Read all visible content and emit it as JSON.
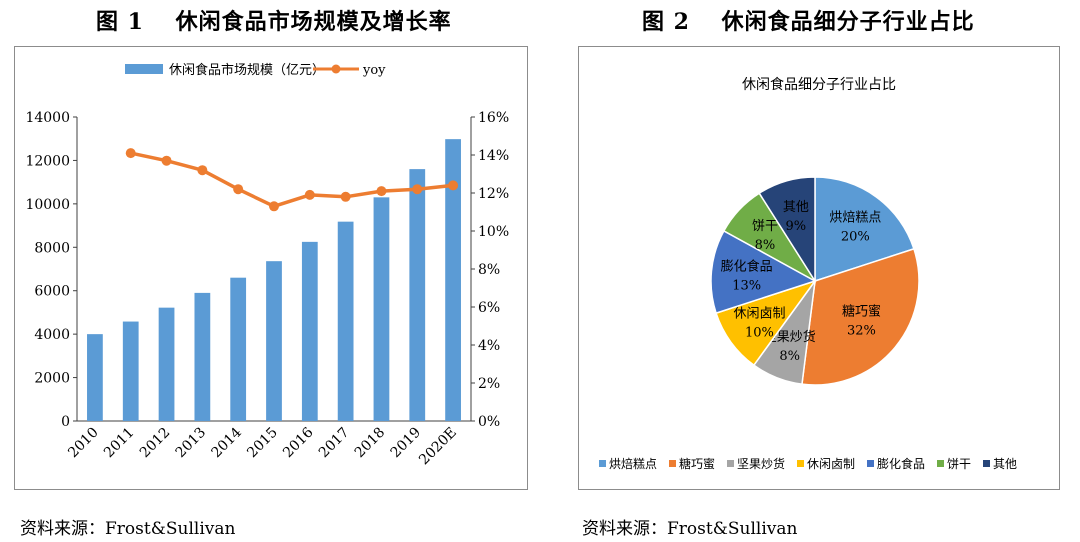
{
  "figure1": {
    "title": "图 1　 休闲食品市场规模及增长率",
    "source": "资料来源：Frost&Sullivan",
    "chart_data": {
      "type": "bar",
      "categories": [
        "2010",
        "2011",
        "2012",
        "2013",
        "2014",
        "2015",
        "2016",
        "2017",
        "2018",
        "2019",
        "2020E"
      ],
      "series": [
        {
          "name": "休闲食品市场规模（亿元）",
          "type": "bar",
          "axis": "left",
          "color": "#5b9bd5",
          "values": [
            4000,
            4580,
            5220,
            5900,
            6600,
            7360,
            8250,
            9180,
            10300,
            11600,
            12980
          ]
        },
        {
          "name": "yoy",
          "type": "line",
          "axis": "right",
          "color": "#ed7d31",
          "values": [
            null,
            14.1,
            13.7,
            13.2,
            12.2,
            11.3,
            11.9,
            11.8,
            12.1,
            12.2,
            12.4
          ]
        }
      ],
      "ylim_left": [
        0,
        14000
      ],
      "yticks_left": [
        "0",
        "2000",
        "4000",
        "6000",
        "8000",
        "10000",
        "12000",
        "14000"
      ],
      "ylim_right": [
        0,
        16
      ],
      "yticks_right": [
        "0%",
        "2%",
        "4%",
        "6%",
        "8%",
        "10%",
        "12%",
        "14%",
        "16%"
      ],
      "legend": "top",
      "grid": false
    }
  },
  "figure2": {
    "title": "图 2　 休闲食品细分子行业占比",
    "source": "资料来源：Frost&Sullivan",
    "chart_data": {
      "type": "pie",
      "title": "休闲食品细分子行业占比",
      "labels": [
        "烘焙糕点",
        "糖巧蜜",
        "坚果炒货",
        "休闲卤制",
        "膨化食品",
        "饼干",
        "其他"
      ],
      "values": [
        20,
        32,
        8,
        10,
        13,
        8,
        9
      ],
      "value_labels": [
        "20%",
        "32%",
        "8%",
        "10%",
        "13%",
        "8%",
        "9%"
      ],
      "colors": [
        "#5b9bd5",
        "#ed7d31",
        "#a5a5a5",
        "#ffc000",
        "#4472c4",
        "#70ad47",
        "#264478"
      ],
      "legend": "bottom"
    }
  }
}
